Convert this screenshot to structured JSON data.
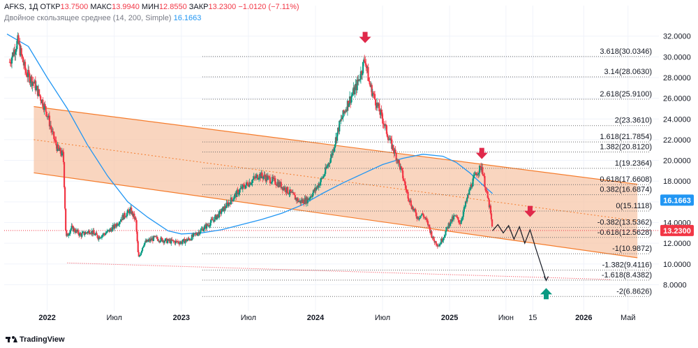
{
  "header": {
    "symbol": "AFKS, 1Д",
    "open_label": "ОТКР",
    "open": "13.7500",
    "high_label": "МАКС",
    "high": "13.9940",
    "low_label": "МИН",
    "low": "12.8550",
    "close_label": "ЗАКР",
    "close": "13.2300",
    "change": "−1.0120 (−7.11%)"
  },
  "indicator": {
    "label": "Двойное скользящее среднее (14, 200, Simple)",
    "value": "16.1663"
  },
  "branding": {
    "logo_text": "TradingView"
  },
  "colors": {
    "channel_fill": "#f7c7a9",
    "channel_line": "#f57c2c",
    "ma_line": "#2196f3",
    "up_candle": "#089981",
    "down_candle": "#f23645",
    "arrow_down": "#e0294a",
    "arrow_up": "#089981",
    "grid": "#f0f3fa"
  },
  "chart_data": {
    "type": "candlestick",
    "title": "AFKS, 1Д",
    "ylim": [
      5.8,
      33.6
    ],
    "y_ticks": [
      "32.0000",
      "30.0000",
      "28.0000",
      "26.0000",
      "24.0000",
      "22.0000",
      "20.0000",
      "18.0000",
      "16.0000",
      "14.0000",
      "12.0000",
      "10.0000",
      "8.0000"
    ],
    "x_ticks": [
      {
        "label": "2022",
        "t": 2022.0
      },
      {
        "label": "Июл",
        "t": 2022.5
      },
      {
        "label": "2023",
        "t": 2023.0
      },
      {
        "label": "Июл",
        "t": 2023.5
      },
      {
        "label": "2024",
        "t": 2024.0
      },
      {
        "label": "Июл",
        "t": 2024.5
      },
      {
        "label": "2025",
        "t": 2025.0
      },
      {
        "label": "Июн",
        "t": 2025.42
      },
      {
        "label": "15",
        "t": 2025.62
      },
      {
        "label": "2026",
        "t": 2026.0
      },
      {
        "label": "Май",
        "t": 2026.33
      }
    ],
    "price_path": [
      [
        2021.72,
        29.5
      ],
      [
        2021.78,
        31.5
      ],
      [
        2021.84,
        28.5
      ],
      [
        2021.9,
        27.5
      ],
      [
        2021.96,
        25.8
      ],
      [
        2022.0,
        24.5
      ],
      [
        2022.04,
        22.5
      ],
      [
        2022.08,
        21.0
      ],
      [
        2022.12,
        20.5
      ],
      [
        2022.14,
        12.5
      ],
      [
        2022.18,
        13.5
      ],
      [
        2022.25,
        12.8
      ],
      [
        2022.32,
        13.2
      ],
      [
        2022.38,
        12.6
      ],
      [
        2022.44,
        13.0
      ],
      [
        2022.5,
        13.6
      ],
      [
        2022.56,
        14.5
      ],
      [
        2022.62,
        15.2
      ],
      [
        2022.66,
        14.2
      ],
      [
        2022.68,
        10.5
      ],
      [
        2022.72,
        12.0
      ],
      [
        2022.8,
        12.5
      ],
      [
        2022.9,
        12.2
      ],
      [
        2023.0,
        12.1
      ],
      [
        2023.06,
        12.4
      ],
      [
        2023.12,
        13.0
      ],
      [
        2023.2,
        13.8
      ],
      [
        2023.28,
        14.8
      ],
      [
        2023.36,
        16.0
      ],
      [
        2023.44,
        17.2
      ],
      [
        2023.52,
        18.0
      ],
      [
        2023.58,
        18.6
      ],
      [
        2023.64,
        18.3
      ],
      [
        2023.72,
        17.8
      ],
      [
        2023.8,
        17.0
      ],
      [
        2023.88,
        16.0
      ],
      [
        2023.94,
        16.2
      ],
      [
        2024.0,
        17.2
      ],
      [
        2024.06,
        18.5
      ],
      [
        2024.12,
        20.5
      ],
      [
        2024.18,
        23.5
      ],
      [
        2024.24,
        25.5
      ],
      [
        2024.3,
        27.0
      ],
      [
        2024.34,
        28.5
      ],
      [
        2024.37,
        29.9
      ],
      [
        2024.4,
        27.5
      ],
      [
        2024.44,
        26.0
      ],
      [
        2024.5,
        24.0
      ],
      [
        2024.55,
        22.0
      ],
      [
        2024.6,
        20.5
      ],
      [
        2024.64,
        19.0
      ],
      [
        2024.68,
        17.0
      ],
      [
        2024.72,
        15.5
      ],
      [
        2024.76,
        14.5
      ],
      [
        2024.8,
        14.8
      ],
      [
        2024.84,
        13.8
      ],
      [
        2024.88,
        12.3
      ],
      [
        2024.92,
        11.8
      ],
      [
        2024.96,
        12.8
      ],
      [
        2025.0,
        14.0
      ],
      [
        2025.04,
        14.6
      ],
      [
        2025.08,
        14.0
      ],
      [
        2025.12,
        15.8
      ],
      [
        2025.16,
        17.6
      ],
      [
        2025.2,
        18.8
      ],
      [
        2025.24,
        19.4
      ],
      [
        2025.27,
        17.2
      ],
      [
        2025.3,
        15.4
      ],
      [
        2025.32,
        13.23
      ]
    ],
    "ma200_path": [
      [
        2021.7,
        32.2
      ],
      [
        2021.86,
        31.0
      ],
      [
        2022.0,
        28.0
      ],
      [
        2022.15,
        25.0
      ],
      [
        2022.3,
        21.5
      ],
      [
        2022.45,
        18.5
      ],
      [
        2022.6,
        16.0
      ],
      [
        2022.75,
        14.5
      ],
      [
        2022.9,
        13.2
      ],
      [
        2023.0,
        12.9
      ],
      [
        2023.15,
        13.0
      ],
      [
        2023.3,
        13.3
      ],
      [
        2023.45,
        13.8
      ],
      [
        2023.6,
        14.3
      ],
      [
        2023.75,
        14.9
      ],
      [
        2023.9,
        15.7
      ],
      [
        2024.05,
        16.8
      ],
      [
        2024.2,
        17.8
      ],
      [
        2024.35,
        18.7
      ],
      [
        2024.5,
        19.6
      ],
      [
        2024.65,
        20.2
      ],
      [
        2024.8,
        20.6
      ],
      [
        2024.95,
        20.4
      ],
      [
        2025.05,
        19.8
      ],
      [
        2025.15,
        18.8
      ],
      [
        2025.25,
        17.6
      ],
      [
        2025.32,
        16.8
      ]
    ],
    "channel": {
      "upper": {
        "start": [
          2021.9,
          25.2
        ],
        "end": [
          2026.4,
          17.7
        ]
      },
      "lower": {
        "start": [
          2021.9,
          18.8
        ],
        "end": [
          2026.4,
          10.6
        ]
      },
      "middle": {
        "start": [
          2021.9,
          22.0
        ],
        "end": [
          2026.4,
          14.15
        ]
      },
      "bottom_dotted": {
        "start": [
          2022.15,
          10.1
        ],
        "end": [
          2026.2,
          8.5
        ]
      }
    },
    "fib_levels": [
      {
        "label": "3.618(30.0346)",
        "value": 30.0346
      },
      {
        "label": "3.14(28.0630)",
        "value": 28.063
      },
      {
        "label": "2.618(25.9100)",
        "value": 25.91
      },
      {
        "label": "2(23.3610)",
        "value": 23.361
      },
      {
        "label": "1.618(21.7854)",
        "value": 21.7854
      },
      {
        "label": "1.382(20.8120)",
        "value": 20.812
      },
      {
        "label": "1(19.2364)",
        "value": 19.2364
      },
      {
        "label": "0.618(17.6608)",
        "value": 17.6608
      },
      {
        "label": "0.382(16.6874)",
        "value": 16.6874
      },
      {
        "label": "0(15.1118)",
        "value": 15.1118
      },
      {
        "label": "-0.382(13.5362)",
        "value": 13.5362
      },
      {
        "label": "-0.618(12.5628)",
        "value": 12.5628
      },
      {
        "label": "-1(10.9872)",
        "value": 10.9872
      },
      {
        "label": "-1.382(9.4116)",
        "value": 9.4116
      },
      {
        "label": "-1.618(8.4382)",
        "value": 8.4382
      },
      {
        "label": "-2(6.8626)",
        "value": 6.8626
      }
    ],
    "forecast_path": [
      [
        2025.32,
        13.2
      ],
      [
        2025.36,
        13.8
      ],
      [
        2025.4,
        13.0
      ],
      [
        2025.44,
        13.7
      ],
      [
        2025.48,
        12.4
      ],
      [
        2025.52,
        13.6
      ],
      [
        2025.56,
        12.0
      ],
      [
        2025.6,
        13.3
      ],
      [
        2025.64,
        11.6
      ],
      [
        2025.72,
        8.4
      ]
    ],
    "markers": [
      {
        "kind": "arrow-down",
        "t": 2024.37,
        "value": 31.8
      },
      {
        "kind": "arrow-down",
        "t": 2025.24,
        "value": 20.6
      },
      {
        "kind": "arrow-down",
        "t": 2025.6,
        "value": 15.0
      },
      {
        "kind": "arrow-up",
        "t": 2025.72,
        "value": 7.2
      }
    ],
    "last_price": {
      "label": "13.2300",
      "value": 13.23
    },
    "ma_value": {
      "label": "16.1663",
      "value": 16.1663
    }
  }
}
